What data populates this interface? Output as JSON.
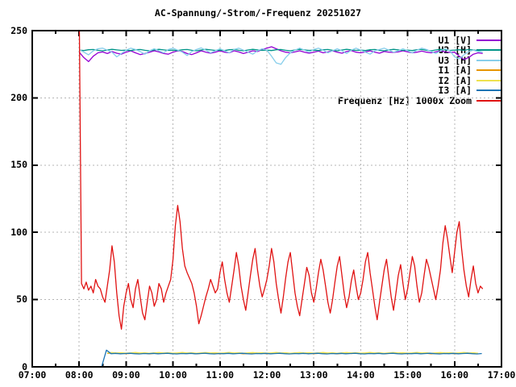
{
  "chart_data": {
    "type": "line",
    "title": "AC-Spannung/-Strom/-Frequenz 20251027",
    "x_axis": {
      "min": 7,
      "max": 17,
      "minor_step": 0.5,
      "tick_values": [
        7,
        8,
        9,
        10,
        11,
        12,
        13,
        14,
        15,
        16,
        17
      ],
      "tick_labels": [
        "07:00",
        "08:00",
        "09:00",
        "10:00",
        "11:00",
        "12:00",
        "13:00",
        "14:00",
        "15:00",
        "16:00",
        "17:00"
      ]
    },
    "y_axis": {
      "min": 0,
      "max": 250,
      "tick_values": [
        0,
        50,
        100,
        150,
        200,
        250
      ],
      "tick_labels": [
        "0",
        "50",
        "100",
        "150",
        "200",
        "250"
      ]
    },
    "grid": {
      "on": true,
      "style": "dotted",
      "color": "#b5b5b5"
    },
    "legend_position": "top-right-inside",
    "border_color": "#000000",
    "series": [
      {
        "id": "u1",
        "label": "U1 [V]",
        "color": "#9400D3",
        "t0": 8.0,
        "dt": 0.1,
        "values": [
          234,
          230,
          227,
          231,
          233.5,
          234.2,
          233,
          234.5,
          233.2,
          232.5,
          234,
          235,
          233.5,
          232.2,
          233,
          234,
          235,
          234.2,
          233,
          232.5,
          234,
          235,
          234.5,
          233,
          232.2,
          233.5,
          235,
          234,
          233.2,
          234,
          235,
          234,
          233.5,
          235,
          234.2,
          233,
          234,
          235,
          234.5,
          236,
          237,
          238,
          236.5,
          235,
          234,
          233.5,
          234.2,
          235,
          234,
          233.2,
          234,
          234.8,
          233.5,
          234.2,
          235,
          234,
          233.2,
          234.5,
          235.2,
          234,
          233.5,
          234.2,
          235,
          234,
          233.2,
          234.5,
          234,
          233.8,
          234.2,
          235,
          234.2,
          233.5,
          234,
          234.8,
          234,
          233.5,
          234.2,
          235,
          234.2,
          233.8,
          234,
          231,
          228.5,
          230,
          232.5,
          233.5,
          233
        ]
      },
      {
        "id": "u2",
        "label": "U2 [H]",
        "color": "#009488",
        "t0": 8.0,
        "dt": 0.1,
        "values": [
          235.5,
          235.2,
          235.8,
          236,
          235.4,
          235,
          235.6,
          236.1,
          235.7,
          235.3,
          235.5,
          235.2,
          235.8,
          236,
          235.4,
          235,
          235.6,
          236.1,
          235.7,
          235.3,
          235.5,
          235.2,
          235.8,
          236,
          235.4,
          235,
          235.6,
          236.1,
          235.7,
          235.3,
          235.5,
          235.2,
          235.8,
          236,
          235.4,
          235,
          235.6,
          236.1,
          235.7,
          235.3,
          235.5,
          235.2,
          235.8,
          236,
          235.4,
          235,
          235.6,
          236.1,
          235.7,
          235.3,
          235.5,
          235.2,
          235.8,
          236,
          235.4,
          235,
          235.6,
          236.1,
          235.7,
          235.3,
          235.5,
          235.2,
          235.8,
          236,
          235.4,
          235,
          235.6,
          236.1,
          235.7,
          235.3,
          235.5,
          235.2,
          235.8,
          236,
          235.4,
          235,
          235.6,
          236.1,
          235.7,
          235.3,
          235.5,
          235.8,
          235.4,
          236,
          235.6,
          235.2,
          235.5
        ]
      },
      {
        "id": "u3",
        "label": "U3 [H]",
        "color": "#87CEEB",
        "t0": 8.0,
        "dt": 0.1,
        "values": [
          236,
          234,
          232,
          235,
          236.5,
          237,
          235.5,
          234,
          230.5,
          233,
          235.5,
          237,
          236,
          234.5,
          232.5,
          235,
          236.5,
          235,
          233.5,
          236,
          237,
          235.5,
          234,
          231.5,
          234.5,
          236,
          237.2,
          235.5,
          233.5,
          235,
          236.5,
          235,
          233.5,
          236,
          237,
          235.5,
          234,
          232.5,
          235,
          236.5,
          235.5,
          231,
          226,
          225,
          230,
          233.5,
          235.5,
          237,
          235.5,
          234,
          236,
          237,
          235.5,
          233.5,
          235,
          236.5,
          235,
          233,
          235.5,
          237,
          235.5,
          234,
          232.5,
          235,
          236,
          237,
          235.5,
          234,
          235,
          236.5,
          235,
          233.5,
          235.5,
          237,
          236,
          234.5,
          233,
          235,
          236.5,
          235,
          230.5,
          229,
          232,
          234.5,
          235.5,
          234.5,
          234
        ]
      },
      {
        "id": "i1",
        "label": "I1 [A]",
        "color": "#E69500",
        "t0": 8.6,
        "dt": 0.1,
        "values": [
          10,
          10.2,
          9.9,
          10.1,
          9.8,
          10,
          10.3,
          9.9,
          10.1,
          9.7,
          10,
          10.2,
          9.9,
          10.1,
          9.8,
          10,
          10.3,
          9.9,
          10.1,
          9.7,
          10,
          10.2,
          9.9,
          10.1,
          9.8,
          10,
          10.3,
          9.9,
          10.1,
          9.7,
          10,
          10.2,
          9.9,
          10.1,
          9.8,
          10,
          10.3,
          9.9,
          10.1,
          9.7,
          10,
          10.2,
          9.9,
          10.1,
          9.8,
          10,
          10.3,
          9.9,
          10.1,
          9.7,
          10,
          10.2,
          9.9,
          10.1,
          9.8,
          10,
          10.3,
          9.9,
          10.1,
          9.7,
          10,
          10.2,
          9.9,
          10.1,
          9.8,
          10,
          10.3,
          9.9,
          10.1,
          9.7,
          10,
          10.2,
          9.9,
          10.1,
          9.8,
          10,
          10.3,
          9.9,
          10.1,
          9.7
        ]
      },
      {
        "id": "i2",
        "label": "I2 [A]",
        "color": "#EEE24F",
        "t0": 8.6,
        "dt": 0.1,
        "values": [
          10.4,
          10.6,
          10.3,
          10.5,
          10.2,
          10.4,
          10.7,
          10.3,
          10.5,
          10.1,
          10.4,
          10.6,
          10.3,
          10.5,
          10.2,
          10.4,
          10.7,
          10.3,
          10.5,
          10.1,
          10.4,
          10.6,
          10.3,
          10.5,
          10.2,
          10.4,
          10.7,
          10.3,
          10.5,
          10.1,
          10.4,
          10.6,
          10.3,
          10.5,
          10.2,
          10.4,
          10.7,
          10.3,
          10.5,
          10.1,
          10.4,
          10.6,
          10.3,
          10.5,
          10.2,
          10.4,
          10.7,
          10.3,
          10.5,
          10.1,
          10.4,
          10.6,
          10.3,
          10.5,
          10.2,
          10.4,
          10.7,
          10.3,
          10.5,
          10.1,
          10.4,
          10.6,
          10.3,
          10.5,
          10.2,
          10.4,
          10.7,
          10.3,
          10.5,
          10.1,
          10.4,
          10.6,
          10.3,
          10.5,
          10.2,
          10.4,
          10.7,
          10.3,
          10.5,
          10.1
        ]
      },
      {
        "id": "i3",
        "label": "I3 [A]",
        "color": "#1B74B4",
        "t0": 8.48,
        "dt": 0.1,
        "values": [
          0.2,
          12.4,
          9.8,
          10,
          9.7,
          9.9,
          10.1,
          9.8,
          9.6,
          9.9,
          9.8,
          10,
          9.7,
          9.9,
          10.1,
          9.8,
          9.6,
          9.9,
          9.8,
          10,
          9.7,
          9.9,
          10.1,
          9.8,
          9.6,
          9.9,
          9.8,
          10,
          9.7,
          9.9,
          10.1,
          9.8,
          9.6,
          9.9,
          9.8,
          10,
          9.7,
          9.9,
          10.1,
          9.8,
          9.6,
          9.9,
          9.8,
          10,
          9.7,
          9.9,
          10.1,
          9.8,
          9.6,
          9.9,
          9.8,
          10,
          9.7,
          9.9,
          10.1,
          9.8,
          9.6,
          9.9,
          9.8,
          10,
          9.7,
          9.9,
          10.1,
          9.8,
          9.6,
          9.9,
          9.8,
          10,
          9.7,
          9.9,
          10.1,
          9.8,
          9.6,
          9.9,
          9.8,
          10,
          9.7,
          9.9,
          10.1,
          9.8,
          9.6,
          9.9
        ]
      },
      {
        "id": "freq",
        "label": "Frequenz [Hz] 1000x Zoom",
        "color": "#E01212",
        "t0": 8.0,
        "dt": 0.05,
        "values": [
          270,
          62,
          58,
          63,
          57,
          60,
          55,
          65,
          60,
          58,
          52,
          48,
          60,
          72,
          90,
          78,
          55,
          38,
          28,
          45,
          55,
          62,
          50,
          44,
          58,
          65,
          52,
          40,
          35,
          48,
          60,
          55,
          45,
          50,
          62,
          58,
          48,
          55,
          60,
          65,
          80,
          105,
          120,
          108,
          88,
          75,
          70,
          66,
          62,
          55,
          45,
          32,
          38,
          45,
          52,
          58,
          65,
          60,
          55,
          58,
          70,
          78,
          65,
          55,
          48,
          60,
          72,
          85,
          75,
          60,
          50,
          42,
          55,
          68,
          80,
          88,
          72,
          60,
          52,
          58,
          65,
          75,
          88,
          78,
          62,
          50,
          40,
          52,
          66,
          78,
          85,
          70,
          55,
          45,
          38,
          50,
          62,
          74,
          68,
          55,
          48,
          58,
          70,
          80,
          72,
          60,
          48,
          40,
          50,
          63,
          75,
          82,
          68,
          54,
          44,
          52,
          64,
          72,
          60,
          50,
          55,
          65,
          78,
          85,
          70,
          58,
          45,
          35,
          48,
          60,
          72,
          80,
          66,
          52,
          42,
          55,
          68,
          76,
          62,
          50,
          58,
          70,
          82,
          75,
          60,
          48,
          55,
          68,
          80,
          74,
          66,
          58,
          50,
          60,
          72,
          92,
          105,
          95,
          82,
          70,
          85,
          100,
          108,
          88,
          72,
          60,
          52,
          65,
          75,
          62,
          55,
          60,
          58
        ]
      }
    ]
  }
}
